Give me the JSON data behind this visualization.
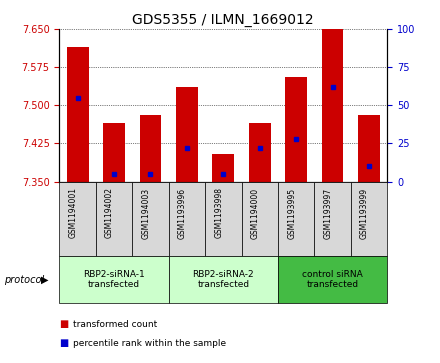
{
  "title": "GDS5355 / ILMN_1669012",
  "samples": [
    "GSM1194001",
    "GSM1194002",
    "GSM1194003",
    "GSM1193996",
    "GSM1193998",
    "GSM1194000",
    "GSM1193995",
    "GSM1193997",
    "GSM1193999"
  ],
  "transformed_counts": [
    7.615,
    7.465,
    7.48,
    7.535,
    7.405,
    7.465,
    7.555,
    7.65,
    7.48
  ],
  "percentile_ranks": [
    55,
    5,
    5,
    22,
    5,
    22,
    28,
    62,
    10
  ],
  "ymin": 7.35,
  "ymax": 7.65,
  "yticks": [
    7.35,
    7.425,
    7.5,
    7.575,
    7.65
  ],
  "right_yticks": [
    0,
    25,
    50,
    75,
    100
  ],
  "bar_color": "#cc0000",
  "dot_color": "#0000cc",
  "groups": [
    {
      "label": "RBP2-siRNA-1\ntransfected",
      "start": 0,
      "end": 3,
      "color": "#ccffcc"
    },
    {
      "label": "RBP2-siRNA-2\ntransfected",
      "start": 3,
      "end": 6,
      "color": "#ccffcc"
    },
    {
      "label": "control siRNA\ntransfected",
      "start": 6,
      "end": 9,
      "color": "#44bb44"
    }
  ],
  "protocol_label": "protocol",
  "legend_items": [
    {
      "label": "transformed count",
      "color": "#cc0000"
    },
    {
      "label": "percentile rank within the sample",
      "color": "#0000cc"
    }
  ],
  "title_fontsize": 10,
  "axis_label_color_left": "#cc0000",
  "axis_label_color_right": "#0000cc",
  "sample_cell_color": "#d8d8d8",
  "bar_width": 0.6
}
